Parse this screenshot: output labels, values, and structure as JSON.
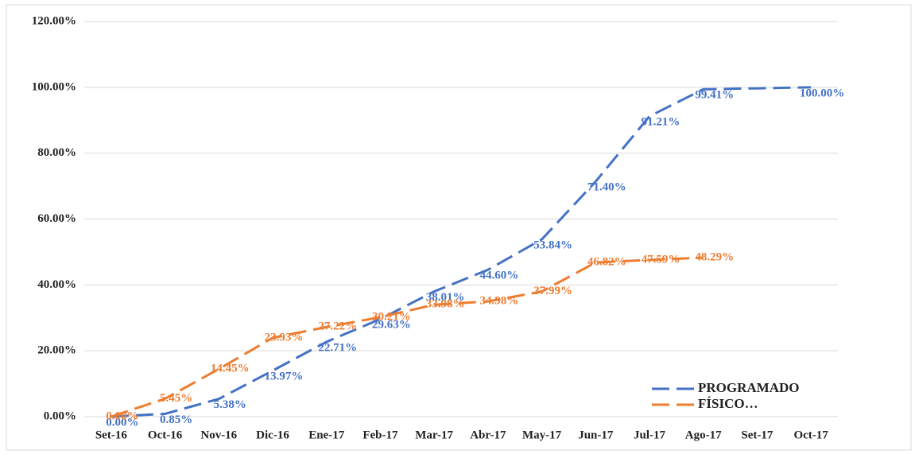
{
  "chart_data": {
    "type": "line",
    "categories": [
      "Set-16",
      "Oct-16",
      "Nov-16",
      "Dic-16",
      "Ene-17",
      "Feb-17",
      "Mar-17",
      "Abr-17",
      "May-17",
      "Jun-17",
      "Jul-17",
      "Ago-17",
      "Set-17",
      "Oct-17"
    ],
    "series": [
      {
        "name": "PROGRAMADO",
        "color": "#4472c4",
        "values": [
          0,
          0.85,
          5.38,
          13.97,
          22.71,
          29.63,
          38.01,
          44.6,
          53.84,
          71.4,
          91.21,
          99.41,
          99.7,
          100
        ],
        "value_labels": [
          "0.00%",
          "0.85%",
          "5.38%",
          "13.97%",
          "22.71%",
          "29.63%",
          "38.01%",
          "44.60%",
          "53.84%",
          "71.40%",
          "91.21%",
          "99.41%",
          null,
          "100.00%"
        ]
      },
      {
        "name": "FÍSICO…",
        "color": "#ed7d31",
        "values": [
          0,
          5.45,
          14.45,
          23.93,
          27.22,
          30.21,
          33.98,
          34.98,
          37.99,
          46.82,
          47.59,
          48.29,
          null,
          null
        ],
        "value_labels": [
          "0.00%",
          "5.45%",
          "14.45%",
          "23.93%",
          "27.22%",
          "30.21%",
          "33.98%",
          "34.98%",
          "37.99%",
          "46.82%",
          "47.59%",
          "48.29%",
          null,
          null
        ]
      }
    ],
    "ylim": [
      0,
      120
    ],
    "yticks": [
      {
        "value": 0,
        "label": "0.00%"
      },
      {
        "value": 20,
        "label": "20.00%"
      },
      {
        "value": 40,
        "label": "40.00%"
      },
      {
        "value": 60,
        "label": "60.00%"
      },
      {
        "value": 80,
        "label": "80.00%"
      },
      {
        "value": 100,
        "label": "100.00%"
      },
      {
        "value": 120,
        "label": "120.00%"
      }
    ],
    "grid": true,
    "legend": "lower right"
  }
}
